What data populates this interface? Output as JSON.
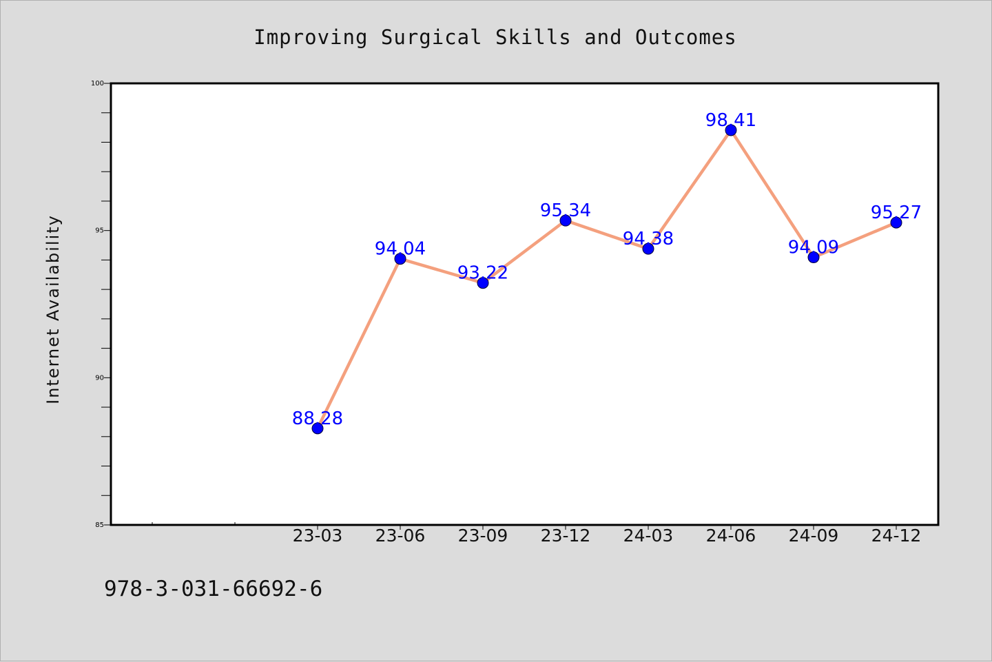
{
  "chart_data": {
    "type": "line",
    "title": "Improving Surgical Skills and Outcomes",
    "xlabel": "",
    "ylabel": "Internet Availability",
    "categories": [
      "23-03",
      "23-06",
      "23-09",
      "23-12",
      "24-03",
      "24-06",
      "24-09",
      "24-12"
    ],
    "series": [
      {
        "values": [
          88.28,
          94.04,
          93.22,
          95.34,
          94.38,
          98.41,
          94.09,
          95.27
        ]
      }
    ],
    "data_labels": [
      "88.28",
      "94.04",
      "93.22",
      "95.34",
      "94.38",
      "98.41",
      "94.09",
      "95.27"
    ],
    "ylim": [
      85,
      100
    ],
    "yticks": [
      "85",
      "90",
      "95",
      "100"
    ],
    "grid": false,
    "legend": "none",
    "colors": {
      "line": "#f4a07e",
      "marker": "#0000ff",
      "data_label": "#0000ff",
      "background": "#dcdcdc",
      "plot_background": "#ffffff"
    }
  },
  "footer": {
    "text": "978-3-031-66692-6"
  }
}
